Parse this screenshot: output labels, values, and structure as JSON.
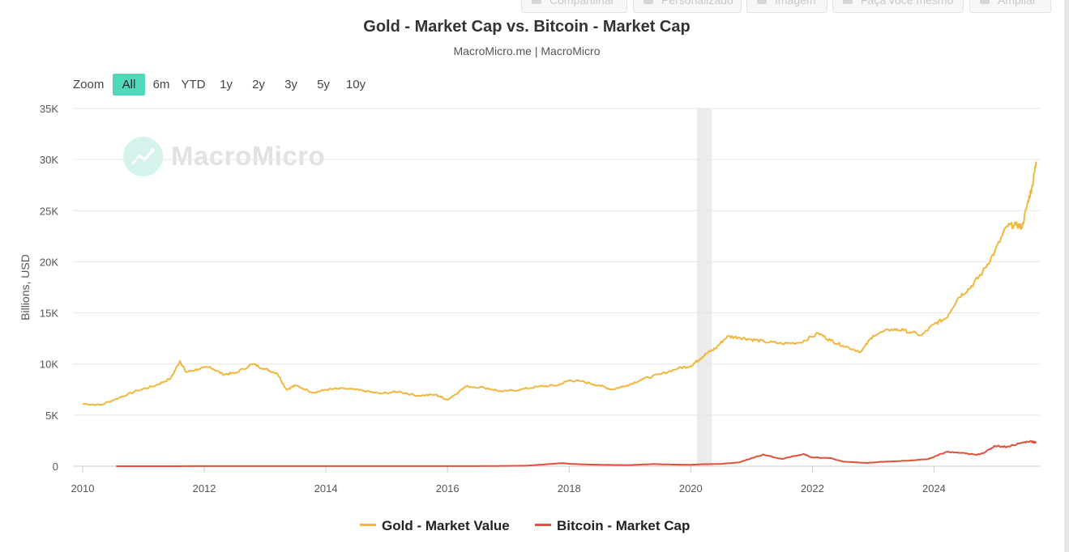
{
  "toolbar": {
    "share": "Compartilhar",
    "customize": "Personalizado",
    "image": "Imagem",
    "diy": "Faça você mesmo",
    "enlarge": "Ampliar"
  },
  "zoom": {
    "label": "Zoom",
    "options": [
      "All",
      "6m",
      "YTD",
      "1y",
      "2y",
      "3y",
      "5y",
      "10y"
    ],
    "selected": "All"
  },
  "watermark": "MacroMicro",
  "colors": {
    "gold": "#f2b63d",
    "bitcoin": "#e0513c",
    "zoom_active": "#4fd8b9",
    "recession_band": "#ececec"
  },
  "chart_data": {
    "type": "line",
    "title": "Gold - Market Cap vs. Bitcoin - Market Cap",
    "subtitle": "MacroMicro.me | MacroMicro",
    "xlabel": "",
    "ylabel": "Billions, USD",
    "x_range": [
      2010.0,
      2025.7
    ],
    "ylim": [
      0,
      35000
    ],
    "x_ticks": [
      "2010",
      "2012",
      "2014",
      "2016",
      "2018",
      "2020",
      "2022",
      "2024"
    ],
    "y_ticks": [
      "0",
      "5K",
      "10K",
      "15K",
      "20K",
      "25K",
      "30K",
      "35K"
    ],
    "shaded_range": [
      2020.1,
      2020.35
    ],
    "grid": true,
    "legend_position": "bottom",
    "series": [
      {
        "name": "Gold - Market Value",
        "color": "#f2b63d",
        "x": [
          2010.0,
          2010.3,
          2010.6,
          2010.9,
          2011.2,
          2011.45,
          2011.6,
          2011.7,
          2011.9,
          2012.1,
          2012.3,
          2012.5,
          2012.8,
          2013.0,
          2013.2,
          2013.35,
          2013.5,
          2013.8,
          2014.0,
          2014.3,
          2014.6,
          2014.9,
          2015.2,
          2015.5,
          2015.8,
          2016.0,
          2016.3,
          2016.6,
          2016.9,
          2017.2,
          2017.5,
          2017.8,
          2018.0,
          2018.2,
          2018.5,
          2018.7,
          2018.95,
          2019.2,
          2019.5,
          2019.8,
          2020.0,
          2020.15,
          2020.25,
          2020.4,
          2020.6,
          2020.8,
          2021.0,
          2021.2,
          2021.5,
          2021.8,
          2022.1,
          2022.3,
          2022.5,
          2022.8,
          2023.0,
          2023.3,
          2023.5,
          2023.8,
          2024.0,
          2024.2,
          2024.4,
          2024.6,
          2024.8,
          2025.0,
          2025.2,
          2025.35,
          2025.45,
          2025.55,
          2025.62,
          2025.68
        ],
        "values": [
          6100,
          6000,
          6700,
          7400,
          7900,
          8600,
          10300,
          9200,
          9500,
          9700,
          9000,
          9100,
          10000,
          9500,
          9100,
          7500,
          7900,
          7200,
          7500,
          7600,
          7400,
          7100,
          7300,
          6900,
          7000,
          6500,
          7800,
          7700,
          7300,
          7500,
          7800,
          7900,
          8400,
          8300,
          7900,
          7500,
          7900,
          8500,
          9000,
          9600,
          9800,
          10500,
          11000,
          11500,
          12700,
          12600,
          12400,
          12200,
          12000,
          12100,
          13000,
          12300,
          11800,
          11200,
          12800,
          13400,
          13300,
          12800,
          13900,
          14500,
          16500,
          17500,
          19000,
          21000,
          23500,
          23600,
          23400,
          26000,
          27500,
          29800
        ]
      },
      {
        "name": "Bitcoin - Market Cap",
        "color": "#e0513c",
        "x": [
          2010.55,
          2013.0,
          2015.0,
          2016.5,
          2017.3,
          2017.9,
          2017.97,
          2018.2,
          2018.6,
          2019.0,
          2019.4,
          2019.7,
          2020.0,
          2020.2,
          2020.5,
          2020.8,
          2021.0,
          2021.2,
          2021.5,
          2021.85,
          2022.0,
          2022.3,
          2022.5,
          2022.9,
          2023.2,
          2023.6,
          2023.9,
          2024.0,
          2024.2,
          2024.45,
          2024.7,
          2024.85,
          2025.0,
          2025.2,
          2025.45,
          2025.6,
          2025.68
        ],
        "values": [
          0,
          10,
          5,
          10,
          50,
          300,
          250,
          180,
          130,
          110,
          210,
          160,
          140,
          200,
          220,
          380,
          800,
          1150,
          700,
          1200,
          850,
          800,
          450,
          320,
          450,
          550,
          700,
          900,
          1400,
          1300,
          1100,
          1400,
          2000,
          1900,
          2300,
          2450,
          2300
        ]
      }
    ]
  }
}
